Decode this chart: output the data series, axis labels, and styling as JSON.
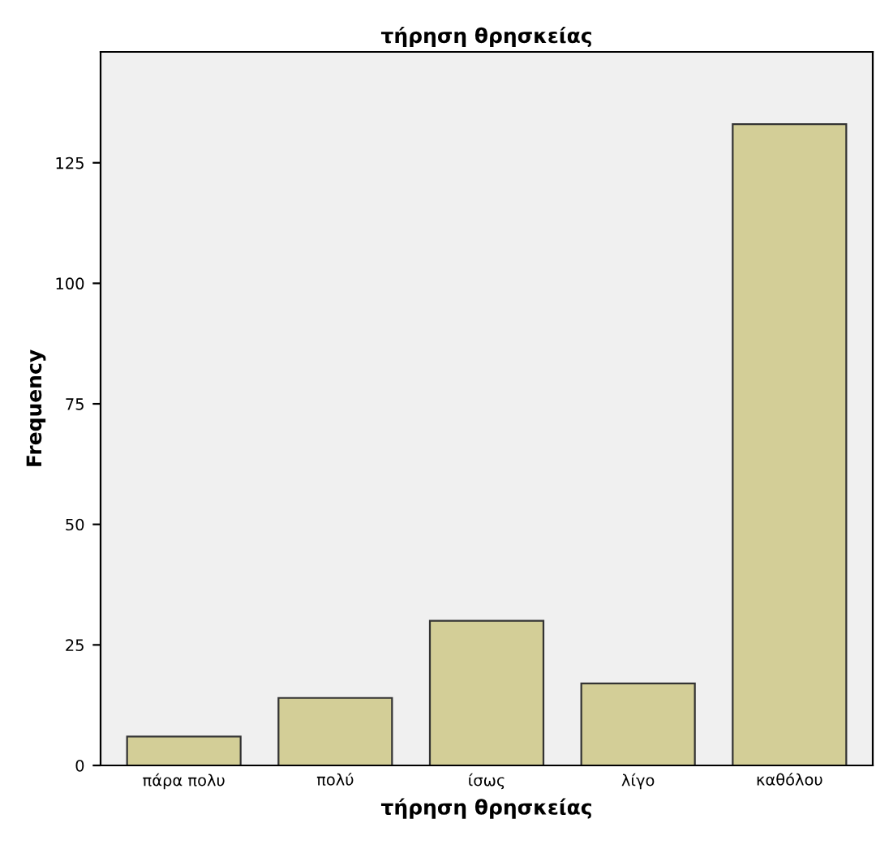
{
  "chart_data": {
    "type": "bar",
    "title": "τήρηση θρησκείας",
    "xlabel": "τήρηση θρησκείας",
    "ylabel": "Frequency",
    "categories": [
      "πάρα πολυ",
      "πολύ",
      "ίσως",
      "λίγο",
      "καθόλου"
    ],
    "values": [
      6,
      14,
      30,
      17,
      133
    ],
    "color": "#d3ce97",
    "ylim": [
      0,
      148
    ],
    "yticks": [
      0,
      25,
      50,
      75,
      100,
      125
    ],
    "grid": false,
    "legend": false
  }
}
